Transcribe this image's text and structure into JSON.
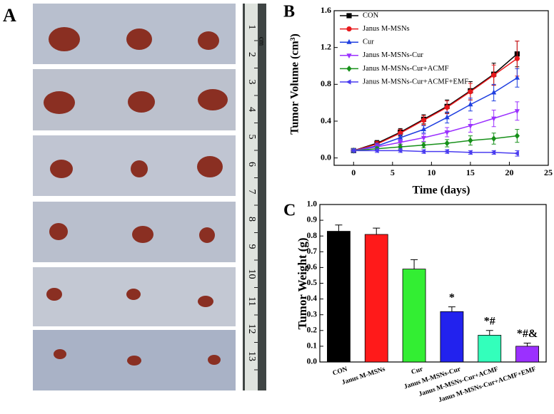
{
  "panel_labels": [
    "A",
    "B",
    "C"
  ],
  "photo": {
    "ruler_unit": "cm",
    "ruler_numbers": [
      1,
      2,
      3,
      4,
      5,
      6,
      7,
      8,
      9,
      10,
      11,
      12,
      13
    ]
  },
  "chart_data": [
    {
      "type": "line",
      "xlabel": "Time (days)",
      "ylabel": "Tumor Volume (cm³)",
      "x": [
        0,
        3,
        6,
        9,
        12,
        15,
        18,
        21
      ],
      "xlim": [
        -2.5,
        25
      ],
      "xticks": [
        0,
        5,
        10,
        15,
        20,
        25
      ],
      "ylim": [
        -0.08,
        1.6
      ],
      "yticks": [
        {
          "value": 0,
          "label": "0.0"
        },
        0.4,
        0.8,
        1.2,
        1.6
      ],
      "legend": "upper left",
      "series": [
        {
          "name": "CON",
          "color": "#000000",
          "marker": "square",
          "values": [
            0.08,
            0.16,
            0.28,
            0.42,
            0.56,
            0.73,
            0.91,
            1.13
          ],
          "errors": [
            0.02,
            0.03,
            0.04,
            0.05,
            0.07,
            0.1,
            0.12,
            0.14
          ]
        },
        {
          "name": "Janus M-MSNs",
          "color": "#e8191c",
          "marker": "circle",
          "values": [
            0.08,
            0.15,
            0.27,
            0.41,
            0.55,
            0.72,
            0.9,
            1.08
          ],
          "errors": [
            0.02,
            0.03,
            0.04,
            0.05,
            0.07,
            0.09,
            0.11,
            0.19
          ]
        },
        {
          "name": "Cur",
          "color": "#1f3fe0",
          "marker": "triangle-up",
          "values": [
            0.08,
            0.13,
            0.22,
            0.31,
            0.44,
            0.58,
            0.71,
            0.87
          ],
          "errors": [
            0.02,
            0.03,
            0.03,
            0.04,
            0.06,
            0.07,
            0.09,
            0.1
          ]
        },
        {
          "name": "Janus M-MSNs-Cur",
          "color": "#9b30ff",
          "marker": "triangle-down",
          "values": [
            0.08,
            0.12,
            0.17,
            0.22,
            0.28,
            0.35,
            0.43,
            0.51
          ],
          "errors": [
            0.02,
            0.03,
            0.03,
            0.04,
            0.05,
            0.07,
            0.09,
            0.1
          ]
        },
        {
          "name": "Janus M-MSNs-Cur+ACMF",
          "color": "#17901a",
          "marker": "diamond",
          "values": [
            0.08,
            0.1,
            0.12,
            0.14,
            0.16,
            0.19,
            0.21,
            0.24
          ],
          "errors": [
            0.02,
            0.02,
            0.03,
            0.03,
            0.04,
            0.05,
            0.06,
            0.07
          ]
        },
        {
          "name": "Janus M-MSNs-Cur+ACMF+EMF",
          "color": "#4a3cf0",
          "marker": "triangle-left",
          "values": [
            0.08,
            0.08,
            0.08,
            0.07,
            0.07,
            0.06,
            0.06,
            0.05
          ],
          "errors": [
            0.02,
            0.02,
            0.02,
            0.02,
            0.02,
            0.02,
            0.02,
            0.03
          ]
        }
      ]
    },
    {
      "type": "bar",
      "ylabel": "Tumor Weight (g)",
      "categories": [
        "CON",
        "Janus M-MSNs",
        "Cur",
        "Janus M-MSNs-Cur",
        "Janus M-MSNs-Cur+ACMF",
        "Janus M-MSNs-Cur+ACMF+EMF"
      ],
      "values": [
        0.83,
        0.81,
        0.59,
        0.32,
        0.17,
        0.1
      ],
      "errors": [
        0.04,
        0.04,
        0.06,
        0.03,
        0.03,
        0.02
      ],
      "colors": [
        "#000000",
        "#ff1a1a",
        "#33ee33",
        "#2222ee",
        "#33ffbb",
        "#9b30ff"
      ],
      "annotations": [
        null,
        null,
        null,
        "*",
        "*#",
        "*#&"
      ],
      "ylim": [
        0,
        1.0
      ],
      "yticks": [
        {
          "value": 0,
          "label": "0.0"
        },
        0.1,
        0.2,
        0.3,
        0.4,
        0.5,
        0.6,
        0.7,
        0.8,
        0.9,
        {
          "value": 1,
          "label": "1.0"
        }
      ]
    }
  ]
}
